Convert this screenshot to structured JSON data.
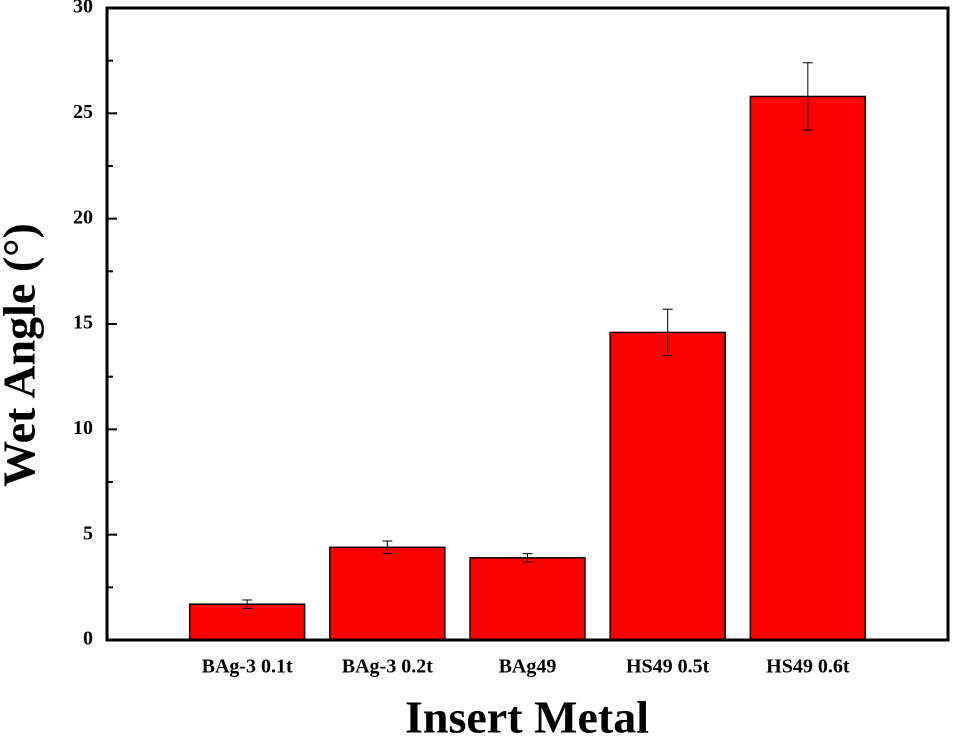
{
  "chart_data": {
    "type": "bar",
    "x_label": "Insert Metal",
    "y_label": "Wet Angle (°)",
    "categories": [
      "BAg-3 0.1t",
      "BAg-3 0.2t",
      "BAg49",
      "HS49 0.5t",
      "HS49 0.6t"
    ],
    "values": [
      1.7,
      4.4,
      3.9,
      14.6,
      25.8
    ],
    "errors": [
      0.2,
      0.3,
      0.2,
      1.1,
      1.6
    ],
    "color": "#ff0000",
    "ylim": [
      0,
      30
    ],
    "yticks": [
      0,
      5,
      10,
      15,
      20,
      25,
      30
    ],
    "grid": false
  }
}
